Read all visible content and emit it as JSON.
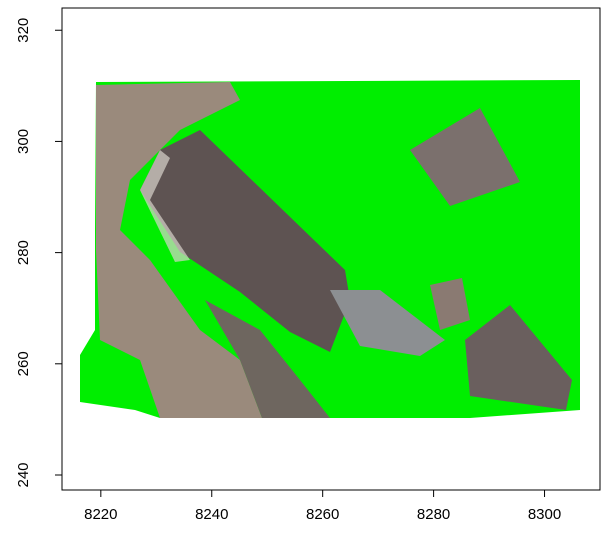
{
  "chart_data": {
    "type": "image",
    "xlim": [
      8213,
      8310
    ],
    "ylim": [
      237.3,
      324
    ],
    "xticks": [
      8220,
      8240,
      8260,
      8280,
      8300
    ],
    "yticks": [
      240,
      260,
      280,
      300,
      320
    ]
  }
}
